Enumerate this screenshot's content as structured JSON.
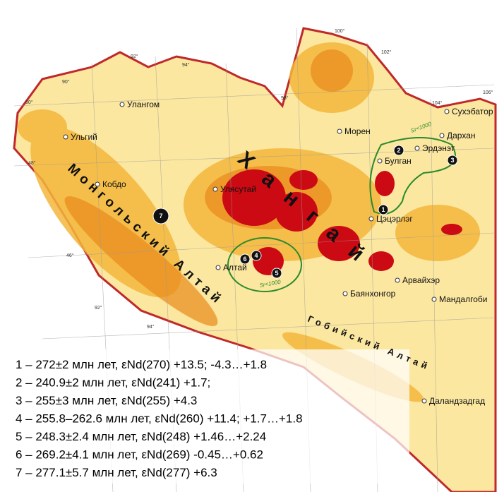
{
  "map": {
    "cities": [
      "Улангом",
      "Ульгий",
      "Кобдо",
      "Улясутай",
      "Морен",
      "Булган",
      "Эрдэнэт",
      "Дархан",
      "Сухэбатор",
      "Цэцэрлэг",
      "Алтай",
      "Баянхонгор",
      "Арвайхэр",
      "Мандалгоби",
      "Даландзадгад"
    ],
    "regions": [
      "Монгольский Алтай",
      "Хангай",
      "Гобийский Алтай"
    ],
    "markers": [
      "1",
      "2",
      "3",
      "4",
      "5",
      "6",
      "7"
    ],
    "isolines": [
      "Sr<1000",
      "Sr<1000"
    ],
    "graticule": [
      "90°",
      "92°",
      "94°",
      "98°",
      "100°",
      "102°",
      "104°",
      "106°",
      "50°",
      "48°",
      "46°",
      "92°",
      "94°"
    ]
  },
  "legend": [
    "1 – 272±2 млн лет, εNd(270) +13.5; -4.3…+1.8",
    "2 – 240.9±2 млн лет, εNd(241) +1.7;",
    "3 – 255±3 млн лет, εNd(255) +4.3",
    "4 – 255.8–262.6 млн лет, εNd(260) +11.4; +1.7…+1.8",
    "5 – 248.3±2.4 млн лет, εNd(248) +1.46…+2.24",
    "6 – 269.2±4.1 млн лет, εNd(269) -0.45…+0.62",
    "7 – 277.1±5.7 млн лет, εNd(277) +6.3"
  ]
}
